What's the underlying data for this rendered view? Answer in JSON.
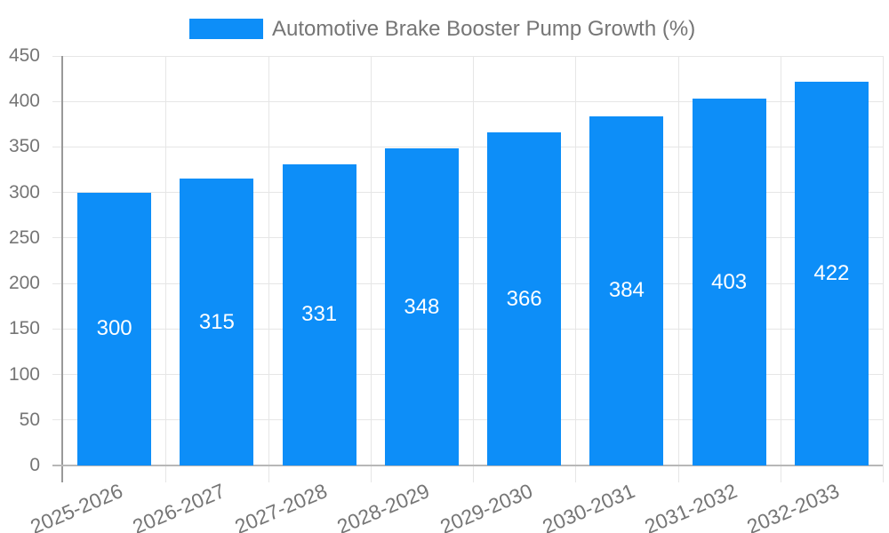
{
  "chart_data": {
    "type": "bar",
    "title": "Automotive Brake Booster Pump Growth (%)",
    "categories": [
      "2025-2026",
      "2026-2027",
      "2027-2028",
      "2028-2029",
      "2029-2030",
      "2030-2031",
      "2031-2032",
      "2032-2033"
    ],
    "values": [
      300,
      315,
      331,
      348,
      366,
      384,
      403,
      422
    ],
    "xlabel": "",
    "ylabel": "",
    "ylim": [
      0,
      450
    ],
    "y_ticks": [
      0,
      50,
      100,
      150,
      200,
      250,
      300,
      350,
      400,
      450
    ],
    "grid": true,
    "legend_position": "top",
    "colors": {
      "bar": "#0d8ef8",
      "gridline": "#e6e6e6",
      "baseline": "#b7b7b7",
      "axis_line": "#999999",
      "tick_text": "#757575",
      "legend_text": "#757575",
      "bar_label_text": "#ffffff",
      "background": "#ffffff"
    }
  }
}
